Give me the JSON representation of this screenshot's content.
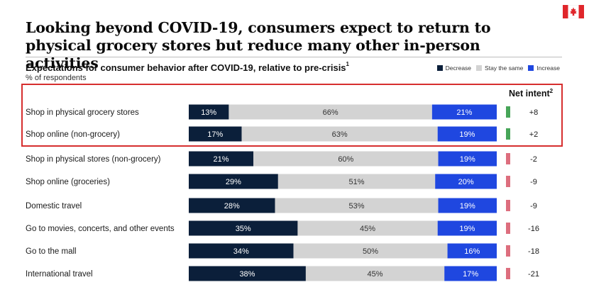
{
  "headline": "Looking beyond COVID-19, consumers expect to return to physical grocery stores but reduce many other in-person activities",
  "subtitle": "Expectations for consumer behavior after COVID-19, relative to pre-crisis",
  "subtitle_footnote": "1",
  "unit_note": "% of respondents",
  "net_intent_header": "Net intent",
  "net_intent_footnote": "2",
  "flag_icon": "canada-flag-icon",
  "colors": {
    "decrease": "#0b1f3a",
    "stay": "#d3d3d3",
    "increase": "#1f47e0",
    "positive_net": "#47a558",
    "negative_net": "#dd6e7e",
    "highlight_border": "#d62e2e"
  },
  "legend": [
    {
      "label": "Decrease",
      "color": "#0b1f3a"
    },
    {
      "label": "Stay the same",
      "color": "#d3d3d3"
    },
    {
      "label": "Increase",
      "color": "#1f47e0"
    }
  ],
  "chart_data": {
    "type": "bar",
    "stacked": true,
    "orientation": "horizontal",
    "categories": [
      "Shop in physical grocery stores",
      "Shop online (non-grocery)",
      "Shop in physical stores (non-grocery)",
      "Shop online (groceries)",
      "Domestic travel",
      "Go to movies, concerts, and other events",
      "Go to the mall",
      "International travel"
    ],
    "series": [
      {
        "name": "Decrease",
        "values": [
          13,
          17,
          21,
          29,
          28,
          35,
          34,
          38
        ]
      },
      {
        "name": "Stay the same",
        "values": [
          66,
          63,
          60,
          51,
          53,
          45,
          50,
          45
        ]
      },
      {
        "name": "Increase",
        "values": [
          21,
          19,
          19,
          20,
          19,
          19,
          16,
          17
        ]
      }
    ],
    "net_intent": [
      8,
      2,
      -2,
      -9,
      -9,
      -16,
      -18,
      -21
    ],
    "net_intent_labels": [
      "+8",
      "+2",
      "-2",
      "-9",
      "-9",
      "-16",
      "-18",
      "-21"
    ],
    "highlighted_rows": [
      0,
      1
    ],
    "unit": "%",
    "legend_position": "top-right"
  }
}
